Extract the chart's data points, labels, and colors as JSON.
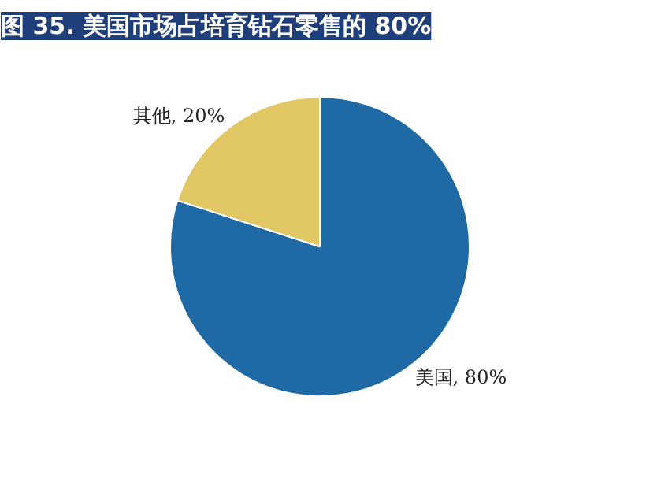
{
  "chart_data": {
    "type": "pie",
    "title": "图 35. 美国市场占培育钻石零售的 80%",
    "categories": [
      "美国",
      "其他"
    ],
    "values": [
      80,
      20
    ],
    "colors": [
      "#1f6aa5",
      "#e2c765"
    ],
    "value_labels": [
      "80%",
      "20%"
    ]
  }
}
